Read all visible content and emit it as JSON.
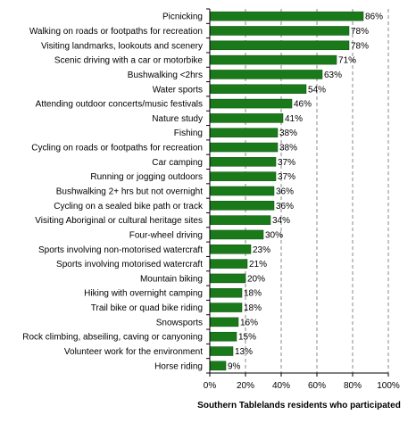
{
  "chart_data": {
    "type": "bar",
    "orientation": "horizontal",
    "title": "",
    "xlabel": "Southern Tablelands residents who participated",
    "ylabel": "",
    "xlim": [
      0,
      100
    ],
    "x_ticks": [
      0,
      20,
      40,
      60,
      80,
      100
    ],
    "tick_labels": [
      "0%",
      "20%",
      "40%",
      "60%",
      "80%",
      "100%"
    ],
    "grid": "vertical dashed",
    "legend": "none",
    "bar_color": "#1a7a1a",
    "value_suffix": "%",
    "categories": [
      "Picnicking",
      "Walking on roads or footpaths for recreation",
      "Visiting landmarks, lookouts and scenery",
      "Scenic driving with a car or motorbike",
      "Bushwalking <2hrs",
      "Water sports",
      "Attending outdoor concerts/music festivals",
      "Nature study",
      "Fishing",
      "Cycling on roads or footpaths for recreation",
      "Car camping",
      "Running or jogging outdoors",
      "Bushwalking 2+ hrs but not overnight",
      "Cycling on a sealed bike path or track",
      "Visiting Aboriginal or cultural heritage sites",
      "Four-wheel driving",
      "Sports involving non-motorised watercraft",
      "Sports involving motorised watercraft",
      "Mountain biking",
      "Hiking with overnight camping",
      "Trail bike or quad bike riding",
      "Snowsports",
      "Rock climbing, abseiling, caving or canyoning",
      "Volunteer work for the environment",
      "Horse riding"
    ],
    "values": [
      86,
      78,
      78,
      71,
      63,
      54,
      46,
      41,
      38,
      38,
      37,
      37,
      36,
      36,
      34,
      30,
      23,
      21,
      20,
      18,
      18,
      16,
      15,
      13,
      9
    ]
  }
}
